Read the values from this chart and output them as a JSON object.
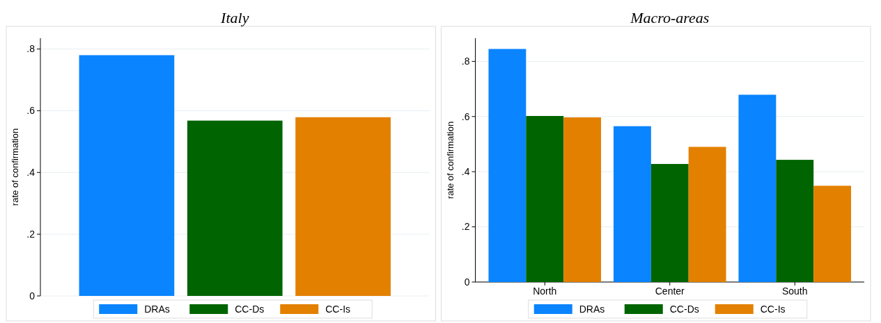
{
  "chart_data": [
    {
      "type": "bar",
      "title": "Italy",
      "ylabel": "rate of confirmation",
      "categories": [
        null
      ],
      "series": [
        {
          "name": "DRAs",
          "color": "#0a84ff",
          "values": [
            0.78
          ]
        },
        {
          "name": "CC-Ds",
          "color": "#006400",
          "values": [
            0.568
          ]
        },
        {
          "name": "CC-Is",
          "color": "#e38000",
          "values": [
            0.579
          ]
        }
      ],
      "ylim": [
        0,
        0.835
      ],
      "yticks": [
        {
          "value": 0,
          "label": "0"
        },
        {
          "value": 0.2,
          "label": ".2"
        },
        {
          "value": 0.4,
          "label": ".4"
        },
        {
          "value": 0.6,
          "label": ".6"
        },
        {
          "value": 0.8,
          "label": ".8"
        }
      ],
      "grid": "y",
      "legend": "bottom"
    },
    {
      "type": "bar",
      "title": "Macro-areas",
      "ylabel": "rate of confirmation",
      "categories": [
        "North",
        "Center",
        "South"
      ],
      "series": [
        {
          "name": "DRAs",
          "color": "#0a84ff",
          "values": [
            0.845,
            0.565,
            0.679
          ]
        },
        {
          "name": "CC-Ds",
          "color": "#006400",
          "values": [
            0.602,
            0.428,
            0.443
          ]
        },
        {
          "name": "CC-Is",
          "color": "#e38000",
          "values": [
            0.597,
            0.49,
            0.349
          ]
        }
      ],
      "ylim": [
        0,
        0.884
      ],
      "yticks": [
        {
          "value": 0,
          "label": "0"
        },
        {
          "value": 0.2,
          "label": ".2"
        },
        {
          "value": 0.4,
          "label": ".4"
        },
        {
          "value": 0.6,
          "label": ".6"
        },
        {
          "value": 0.8,
          "label": ".8"
        }
      ],
      "grid": "y",
      "legend": "bottom"
    }
  ]
}
